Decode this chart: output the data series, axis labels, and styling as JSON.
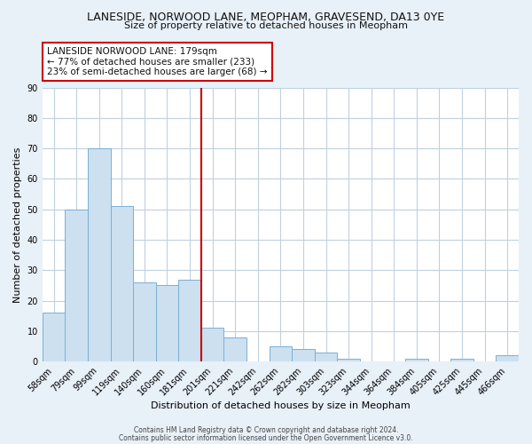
{
  "title": "LANESIDE, NORWOOD LANE, MEOPHAM, GRAVESEND, DA13 0YE",
  "subtitle": "Size of property relative to detached houses in Meopham",
  "xlabel": "Distribution of detached houses by size in Meopham",
  "ylabel": "Number of detached properties",
  "bar_labels": [
    "58sqm",
    "79sqm",
    "99sqm",
    "119sqm",
    "140sqm",
    "160sqm",
    "181sqm",
    "201sqm",
    "221sqm",
    "242sqm",
    "262sqm",
    "282sqm",
    "303sqm",
    "323sqm",
    "344sqm",
    "364sqm",
    "384sqm",
    "405sqm",
    "425sqm",
    "445sqm",
    "466sqm"
  ],
  "bar_values": [
    16,
    50,
    70,
    51,
    26,
    25,
    27,
    11,
    8,
    0,
    5,
    4,
    3,
    1,
    0,
    0,
    1,
    0,
    1,
    0,
    2
  ],
  "bar_color": "#cce0f0",
  "bar_edge_color": "#7ab0d4",
  "vline_index": 6,
  "vline_color": "#cc0000",
  "annotation_title": "LANESIDE NORWOOD LANE: 179sqm",
  "annotation_line2": "← 77% of detached houses are smaller (233)",
  "annotation_line3": "23% of semi-detached houses are larger (68) →",
  "annotation_box_color": "#cc0000",
  "ylim": [
    0,
    90
  ],
  "yticks": [
    0,
    10,
    20,
    30,
    40,
    50,
    60,
    70,
    80,
    90
  ],
  "footer_line1": "Contains HM Land Registry data © Crown copyright and database right 2024.",
  "footer_line2": "Contains public sector information licensed under the Open Government Licence v3.0.",
  "bg_color": "#e8f0f8",
  "plot_bg_color": "#ffffff",
  "grid_color": "#c0d0e0",
  "title_fontsize": 9,
  "subtitle_fontsize": 8,
  "xlabel_fontsize": 8,
  "ylabel_fontsize": 8,
  "tick_fontsize": 7,
  "annotation_fontsize": 7.5,
  "footer_fontsize": 5.5
}
